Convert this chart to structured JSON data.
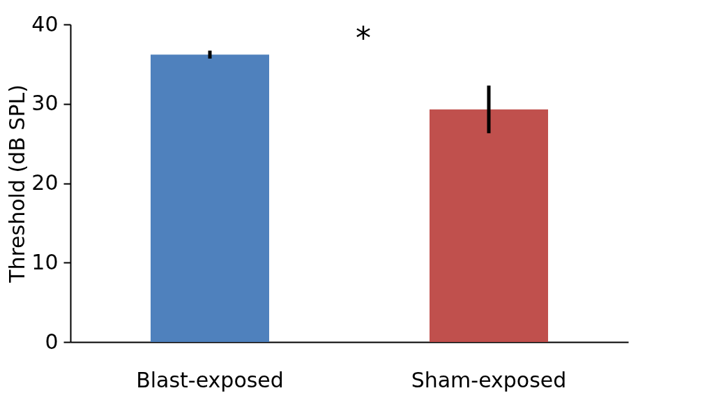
{
  "chart_data": {
    "type": "bar",
    "ylabel": "Threshold (dB SPL)",
    "categories": [
      "Blast-exposed",
      "Sham-exposed"
    ],
    "values": [
      36.2,
      29.3
    ],
    "colors": [
      "#4f81bd",
      "#c0504d"
    ],
    "errors": [
      0.5,
      3.0
    ],
    "ylim": [
      0,
      40
    ],
    "yticks": [
      0,
      10,
      20,
      30,
      40
    ],
    "grid": false,
    "annotations": [
      "*"
    ]
  }
}
